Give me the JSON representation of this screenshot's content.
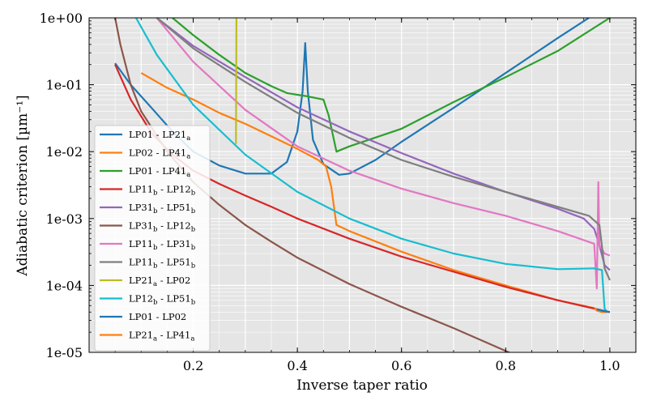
{
  "chart_data": {
    "type": "line",
    "xlabel": "Inverse taper ratio",
    "ylabel": "Adiabatic criterion [µm⁻¹]",
    "xlim": [
      0.0,
      1.05
    ],
    "ylim_log10": [
      -5,
      0
    ],
    "yscale": "log",
    "grid": true,
    "legend_position": "lower-left",
    "x_ticks": [
      0.2,
      0.4,
      0.6,
      0.8,
      1.0
    ],
    "x_tick_labels": [
      "0.2",
      "0.4",
      "0.6",
      "0.8",
      "1.0"
    ],
    "y_ticks": [
      1e-05,
      0.0001,
      0.001,
      0.01,
      0.1,
      1
    ],
    "y_tick_labels": [
      "1e-05",
      "1e-04",
      "1e-03",
      "1e-02",
      "1e-01",
      "1e+00"
    ],
    "series": [
      {
        "name": "LP01 - LP21",
        "sub1": "",
        "sub2": "a",
        "color": "#1f77b4",
        "x": [
          0.05,
          0.08,
          0.12,
          0.16,
          0.2,
          0.25,
          0.3,
          0.35,
          0.38,
          0.4,
          0.41,
          0.415,
          0.42,
          0.43,
          0.45,
          0.48,
          0.5,
          0.55,
          0.6,
          0.7,
          0.8,
          0.9,
          0.96
        ],
        "y": [
          0.21,
          0.1,
          0.045,
          0.02,
          0.01,
          0.0062,
          0.0047,
          0.0047,
          0.007,
          0.02,
          0.08,
          0.42,
          0.08,
          0.015,
          0.0065,
          0.0045,
          0.0047,
          0.0075,
          0.014,
          0.045,
          0.15,
          0.5,
          1.0
        ]
      },
      {
        "name": "LP02 - LP41",
        "sub1": "",
        "sub2": "a",
        "color": "#ff7f0e",
        "x": [
          0.1,
          0.15,
          0.2,
          0.25,
          0.3,
          0.35,
          0.4,
          0.44,
          0.455,
          0.465,
          0.475,
          0.5,
          0.6,
          0.7,
          0.8,
          0.9,
          0.97,
          0.975,
          0.985,
          0.995
        ],
        "y": [
          0.15,
          0.09,
          0.06,
          0.038,
          0.026,
          0.017,
          0.011,
          0.0075,
          0.006,
          0.003,
          0.0008,
          0.00065,
          0.00032,
          0.00017,
          0.0001,
          6e-05,
          4.6e-05,
          4.2e-05,
          4e-05,
          4e-05
        ]
      },
      {
        "name": "LP01 - LP41",
        "sub1": "",
        "sub2": "a",
        "color": "#2ca02c",
        "x": [
          0.16,
          0.2,
          0.25,
          0.3,
          0.35,
          0.38,
          0.42,
          0.45,
          0.46,
          0.475,
          0.5,
          0.6,
          0.7,
          0.8,
          0.9,
          1.0
        ],
        "y": [
          1.0,
          0.55,
          0.28,
          0.15,
          0.095,
          0.075,
          0.067,
          0.06,
          0.035,
          0.01,
          0.012,
          0.022,
          0.055,
          0.13,
          0.32,
          1.0
        ]
      },
      {
        "name": "LP11 - LP12",
        "sub1": "b",
        "sub2": "b",
        "color": "#d62728",
        "x": [
          0.05,
          0.08,
          0.12,
          0.16,
          0.2,
          0.25,
          0.3,
          0.35,
          0.4,
          0.5,
          0.6,
          0.7,
          0.8,
          0.9,
          0.97,
          1.0
        ],
        "y": [
          0.2,
          0.06,
          0.019,
          0.009,
          0.0052,
          0.0033,
          0.0022,
          0.0015,
          0.001,
          0.0005,
          0.00027,
          0.00016,
          9.5e-05,
          6e-05,
          4.5e-05,
          4e-05
        ]
      },
      {
        "name": "LP31 - LP51",
        "sub1": "b",
        "sub2": "b",
        "color": "#9467bd",
        "x": [
          0.13,
          0.2,
          0.3,
          0.4,
          0.5,
          0.6,
          0.7,
          0.8,
          0.9,
          0.95,
          0.97,
          0.98,
          0.99,
          1.0
        ],
        "y": [
          1.0,
          0.38,
          0.13,
          0.046,
          0.02,
          0.0095,
          0.0047,
          0.0025,
          0.0014,
          0.001,
          0.0007,
          0.0004,
          0.0002,
          0.00017
        ]
      },
      {
        "name": "LP31 - LP12",
        "sub1": "b",
        "sub2": "b",
        "color": "#8c564b",
        "x": [
          0.05,
          0.06,
          0.08,
          0.1,
          0.15,
          0.2,
          0.25,
          0.3,
          0.35,
          0.4,
          0.5,
          0.6,
          0.7,
          0.8,
          0.85
        ],
        "y": [
          1.0,
          0.4,
          0.1,
          0.04,
          0.01,
          0.0035,
          0.0016,
          0.0008,
          0.00045,
          0.00026,
          0.000105,
          4.8e-05,
          2.3e-05,
          1.05e-05,
          7e-06
        ]
      },
      {
        "name": "LP11 - LP31",
        "sub1": "b",
        "sub2": "b",
        "color": "#e377c2",
        "x": [
          0.13,
          0.2,
          0.3,
          0.4,
          0.5,
          0.6,
          0.7,
          0.8,
          0.9,
          0.97,
          0.975,
          0.978,
          0.98,
          0.99,
          1.0
        ],
        "y": [
          1.0,
          0.22,
          0.042,
          0.012,
          0.0052,
          0.0028,
          0.0017,
          0.0011,
          0.00065,
          0.00042,
          9e-05,
          0.0035,
          0.0004,
          0.0003,
          0.00028
        ]
      },
      {
        "name": "LP11 - LP51",
        "sub1": "b",
        "sub2": "b",
        "color": "#7f7f7f",
        "x": [
          0.13,
          0.2,
          0.3,
          0.4,
          0.5,
          0.6,
          0.7,
          0.8,
          0.9,
          0.96,
          0.98,
          0.99,
          1.0
        ],
        "y": [
          1.0,
          0.35,
          0.11,
          0.038,
          0.016,
          0.0075,
          0.0042,
          0.0025,
          0.0015,
          0.0011,
          0.0008,
          0.00018,
          0.00012
        ]
      },
      {
        "name": "LP21 - LP02",
        "sub1": "a",
        "sub2": "",
        "color": "#bcbd22",
        "x": [
          0.282,
          0.2825,
          0.283,
          0.2835
        ],
        "y": [
          0.013,
          0.1,
          1.0,
          1.0
        ]
      },
      {
        "name": "LP12 - LP51",
        "sub1": "b",
        "sub2": "b",
        "color": "#17becf",
        "x": [
          0.09,
          0.13,
          0.2,
          0.3,
          0.4,
          0.5,
          0.6,
          0.7,
          0.8,
          0.9,
          0.97,
          0.985,
          0.99,
          0.995
        ],
        "y": [
          1.0,
          0.28,
          0.05,
          0.009,
          0.0025,
          0.001,
          0.0005,
          0.0003,
          0.00021,
          0.000175,
          0.00018,
          0.00017,
          4.5e-05,
          4e-05
        ]
      },
      {
        "name": "LP01 - LP02",
        "sub1": "",
        "sub2": "",
        "color": "#1f77b4",
        "x": [
          0.97,
          0.985,
          1.0
        ],
        "y": [
          4.5e-05,
          4.2e-05,
          4e-05
        ]
      },
      {
        "name": "LP21 - LP41",
        "sub1": "a",
        "sub2": "a",
        "color": "#ff7f0e",
        "x": [
          0.97,
          0.975
        ],
        "y": [
          4.6e-05,
          4.3e-05
        ]
      }
    ]
  }
}
